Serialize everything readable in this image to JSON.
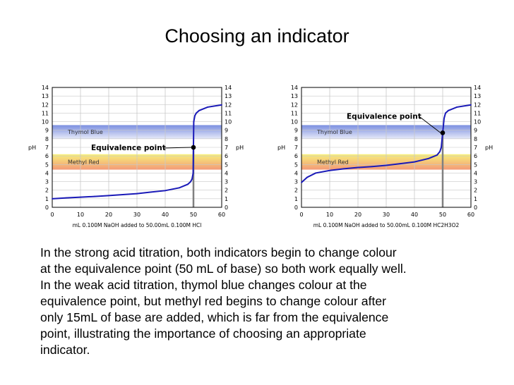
{
  "title": "Choosing an indicator",
  "colors": {
    "curve": "#1a1ab8",
    "thymol_band_top": "#7b8fe0",
    "thymol_band_bottom": "#e6e9f8",
    "methyl_band_top": "#f7f07a",
    "methyl_band_bottom": "#f39a78",
    "equivalence_line": "#808080",
    "grid": "#c8c8c8"
  },
  "chart_data": [
    {
      "type": "line",
      "ylabel": "pH",
      "ylabel_right": "pH",
      "xlabel": "mL 0.100M NaOH added to 50.00mL 0.100M HCl",
      "xlim": [
        0,
        60
      ],
      "ylim": [
        0,
        14
      ],
      "x_ticks": [
        "0",
        "10",
        "20",
        "30",
        "40",
        "50",
        "60"
      ],
      "y_ticks": [
        "0",
        "1",
        "2",
        "3",
        "4",
        "5",
        "6",
        "7",
        "8",
        "9",
        "10",
        "11",
        "12",
        "13",
        "14"
      ],
      "grid": true,
      "bands": [
        {
          "name": "Thymol Blue",
          "range": [
            8.0,
            9.6
          ]
        },
        {
          "name": "Methyl Red",
          "range": [
            4.4,
            6.2
          ]
        }
      ],
      "annotation": {
        "text": "Equivalence point",
        "x": 50,
        "y": 7
      },
      "series": [
        {
          "x": [
            0,
            5,
            10,
            15,
            20,
            25,
            30,
            35,
            40,
            45,
            48,
            49,
            49.5,
            49.9,
            50,
            50.1,
            50.5,
            51,
            52,
            55,
            60
          ],
          "values": [
            1.0,
            1.1,
            1.18,
            1.27,
            1.37,
            1.48,
            1.6,
            1.78,
            1.95,
            2.28,
            2.69,
            3.0,
            3.3,
            4.0,
            7.0,
            10.0,
            10.7,
            11.0,
            11.3,
            11.7,
            11.96
          ]
        }
      ]
    },
    {
      "type": "line",
      "ylabel": "pH",
      "ylabel_right": "pH",
      "xlabel": "mL 0.100M NaOH added to 50.00mL 0.100M HC2H3O2",
      "xlim": [
        0,
        60
      ],
      "ylim": [
        0,
        14
      ],
      "x_ticks": [
        "0",
        "10",
        "20",
        "30",
        "40",
        "50",
        "60"
      ],
      "y_ticks": [
        "0",
        "1",
        "2",
        "3",
        "4",
        "5",
        "6",
        "7",
        "8",
        "9",
        "10",
        "11",
        "12",
        "13",
        "14"
      ],
      "grid": true,
      "bands": [
        {
          "name": "Thymol Blue",
          "range": [
            8.0,
            9.6
          ]
        },
        {
          "name": "Methyl Red",
          "range": [
            4.4,
            6.2
          ]
        }
      ],
      "annotation": {
        "text": "Equivalence point",
        "x": 50,
        "y": 8.7
      },
      "series": [
        {
          "x": [
            0,
            2,
            5,
            10,
            15,
            20,
            25,
            30,
            35,
            40,
            45,
            48,
            49,
            49.5,
            50,
            50.5,
            51,
            52,
            55,
            60
          ],
          "values": [
            2.9,
            3.5,
            4.0,
            4.3,
            4.5,
            4.65,
            4.76,
            4.9,
            5.1,
            5.3,
            5.7,
            6.1,
            6.5,
            7.0,
            8.7,
            10.4,
            11.0,
            11.3,
            11.7,
            11.96
          ]
        }
      ]
    }
  ],
  "description_lines": [
    "In the strong acid titration, both indicators begin to change colour",
    "at the equivalence point (50 mL of base) so both work equally well.",
    "In the weak acid titration, thymol blue changes colour at the",
    "equivalence point, but methyl red begins to change colour after",
    "only 15mL of base are added, which is far from the equivalence",
    "point, illustrating the importance of choosing an appropriate",
    "indicator."
  ]
}
